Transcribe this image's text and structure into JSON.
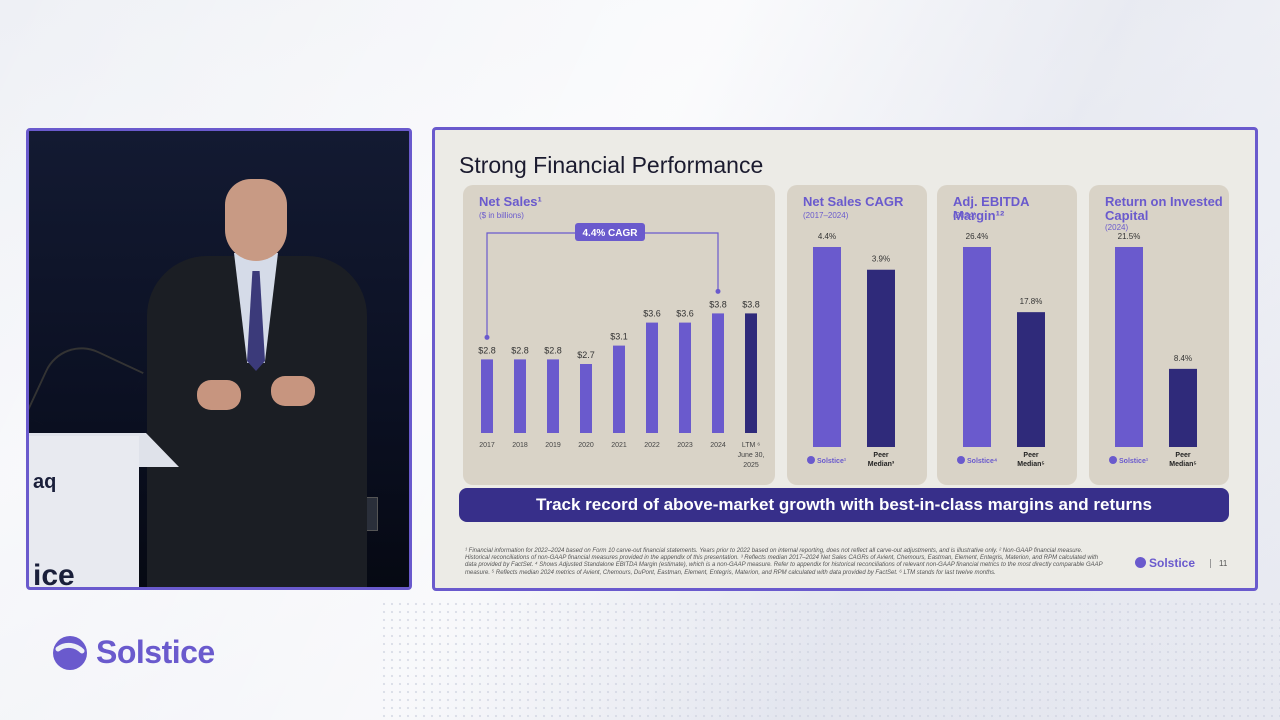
{
  "slide": {
    "title": "Strong Financial Performance",
    "banner": "Track record of above-market growth with best-in-class margins and returns",
    "footnote": "¹ Financial information for 2022–2024 based on Form 10 carve-out financial statements. Years prior to 2022 based on internal reporting, does not reflect all carve-out adjustments, and is illustrative only. ² Non-GAAP financial measure. Historical reconciliations of non-GAAP financial measures provided in the appendix of this presentation. ³ Reflects median 2017–2024 Net Sales CAGRs of Avient, Chemours, Eastman, Element, Entegris, Materion, and RPM calculated with data provided by FactSet. ⁴ Shows Adjusted Standalone EBITDA Margin (estimate), which is a non-GAAP measure. Refer to appendix for historical reconciliations of relevant non-GAAP financial metrics to the most directly comparable GAAP measure. ⁵ Reflects median 2024 metrics of Avient, Chemours, DuPont, Eastman, Element, Entegris, Materion, and RPM calculated with data provided by FactSet. ⁶ LTM stands for last twelve months.",
    "logo": "Solstice",
    "page": "11"
  },
  "brand": {
    "name": "Solstice"
  },
  "colors": {
    "accent": "#6a5acd",
    "dark": "#372f8a",
    "panel": "#d9d3c7",
    "slide_bg": "#ecebe6"
  },
  "video": {
    "podium_text_1": "aq",
    "podium_text_2": "ice"
  },
  "chart_data": [
    {
      "type": "bar",
      "title": "Net Sales¹",
      "subtitle": "($ in billions)",
      "categories": [
        "2017",
        "2018",
        "2019",
        "2020",
        "2021",
        "2022",
        "2023",
        "2024",
        "LTM ⁶"
      ],
      "category_sub": [
        "",
        "",
        "",
        "",
        "",
        "",
        "",
        "",
        "June 30, 2025"
      ],
      "values": [
        2.8,
        2.8,
        2.8,
        2.7,
        3.1,
        3.6,
        3.6,
        3.8,
        3.8
      ],
      "labels": [
        "$2.8",
        "$2.8",
        "$2.8",
        "$2.7",
        "$3.1",
        "$3.6",
        "$3.6",
        "$3.8",
        "$3.8"
      ],
      "annotation": "4.4% CAGR",
      "highlight_last": true
    },
    {
      "type": "bar",
      "title": "Net Sales CAGR",
      "subtitle": "(2017–2024)",
      "categories": [
        "Solstice¹",
        "Peer Median³"
      ],
      "values": [
        4.4,
        3.9
      ],
      "labels": [
        "4.4%",
        "3.9%"
      ]
    },
    {
      "type": "bar",
      "title": "Adj. EBITDA Margin¹²",
      "subtitle": "(2024)",
      "categories": [
        "Solstice⁴",
        "Peer Median⁵"
      ],
      "values": [
        26.4,
        17.8
      ],
      "labels": [
        "26.4%",
        "17.8%"
      ]
    },
    {
      "type": "bar",
      "title": "Return on Invested Capital",
      "subtitle": "(2024)",
      "categories": [
        "Solstice¹",
        "Peer Median⁵"
      ],
      "values": [
        21.5,
        8.4
      ],
      "labels": [
        "21.5%",
        "8.4%"
      ]
    }
  ]
}
